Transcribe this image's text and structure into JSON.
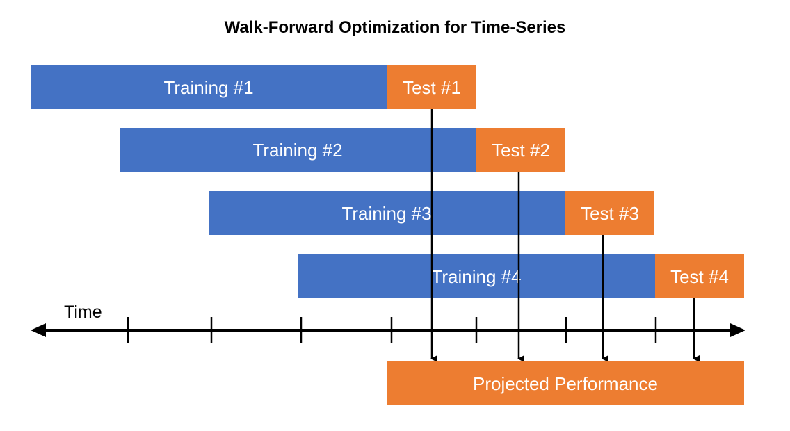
{
  "title": "Walk-Forward Optimization for Time-Series",
  "colors": {
    "training": "#4472C4",
    "test": "#ED7D31",
    "axis": "#000000",
    "label": "#ffffff"
  },
  "windows": [
    {
      "training_label": "Training #1",
      "test_label": "Test #1"
    },
    {
      "training_label": "Training #2",
      "test_label": "Test #2"
    },
    {
      "training_label": "Training #3",
      "test_label": "Test #3"
    },
    {
      "training_label": "Training #4",
      "test_label": "Test #4"
    }
  ],
  "axis": {
    "label": "Time",
    "tick_count": 7
  },
  "result": {
    "label": "Projected Performance"
  }
}
